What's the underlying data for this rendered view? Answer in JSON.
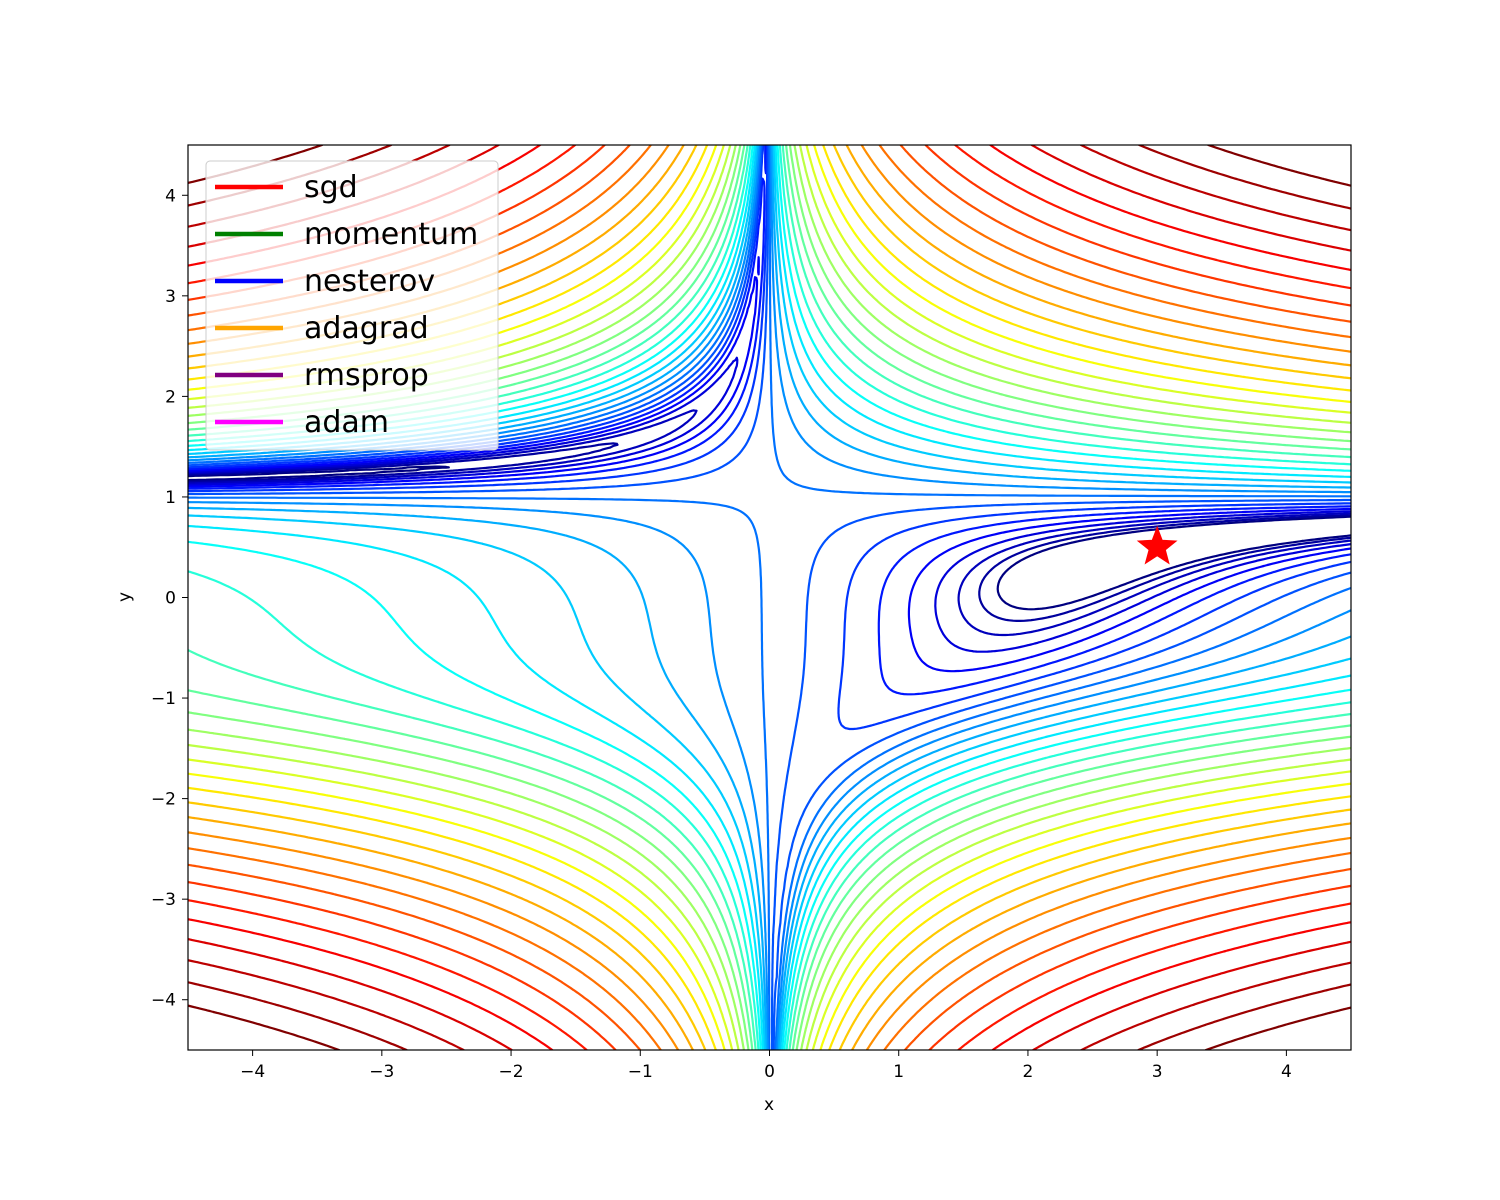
{
  "chart_data": {
    "type": "contour",
    "xlabel": "x",
    "ylabel": "y",
    "xlim": [
      -4.5,
      4.5
    ],
    "ylim": [
      -4.5,
      4.5
    ],
    "xticks": [
      {
        "value": -4,
        "label": "−4"
      },
      {
        "value": -3,
        "label": "−3"
      },
      {
        "value": -2,
        "label": "−2"
      },
      {
        "value": -1,
        "label": "−1"
      },
      {
        "value": 0,
        "label": "0"
      },
      {
        "value": 1,
        "label": "1"
      },
      {
        "value": 2,
        "label": "2"
      },
      {
        "value": 3,
        "label": "3"
      },
      {
        "value": 4,
        "label": "4"
      }
    ],
    "yticks": [
      {
        "value": -4,
        "label": "−4"
      },
      {
        "value": -3,
        "label": "−3"
      },
      {
        "value": -2,
        "label": "−2"
      },
      {
        "value": -1,
        "label": "−1"
      },
      {
        "value": 0,
        "label": "0"
      },
      {
        "value": 1,
        "label": "1"
      },
      {
        "value": 2,
        "label": "2"
      },
      {
        "value": 3,
        "label": "3"
      },
      {
        "value": 4,
        "label": "4"
      }
    ],
    "surface": "Beale function f(x,y) = (1.5 - x + xy)^2 + (2.25 - x + xy^2)^2 + (2.625 - x + xy^3)^2",
    "contour_levels_log10": {
      "min": 0,
      "max": 5,
      "count": 35
    },
    "colormap": "jet",
    "minimum_marker": {
      "x": 3,
      "y": 0.5,
      "marker": "star",
      "color": "#ff0000"
    },
    "legend": {
      "placement": "upper-left",
      "entries": [
        {
          "label": "sgd",
          "color": "#ff0000"
        },
        {
          "label": "momentum",
          "color": "#008000"
        },
        {
          "label": "nesterov",
          "color": "#0000ff"
        },
        {
          "label": "adagrad",
          "color": "#ffa500"
        },
        {
          "label": "rmsprop",
          "color": "#800080"
        },
        {
          "label": "adam",
          "color": "#ff00ff"
        }
      ]
    },
    "grid": false
  }
}
